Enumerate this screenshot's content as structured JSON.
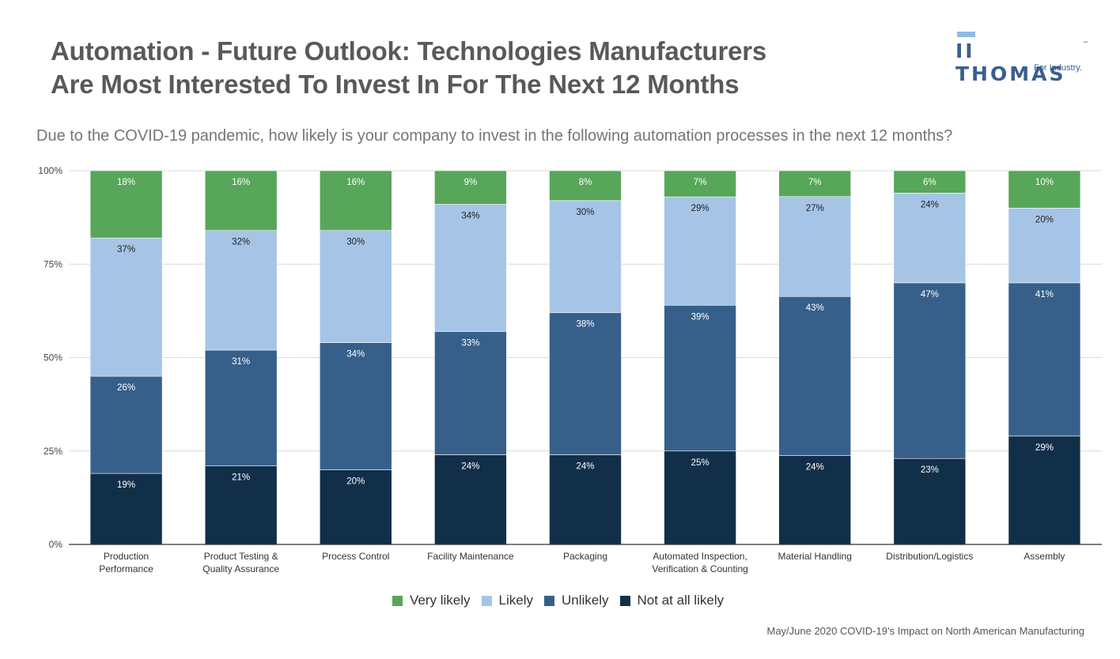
{
  "header": {
    "title_line1": "Automation - Future Outlook: Technologies Manufacturers",
    "title_line2": "Are Most Interested To Invest In For The Next 12 Months",
    "subtitle": "Due to the COVID-19 pandemic, how likely is your company to invest in the following automation processes in the next 12 months?"
  },
  "logo": {
    "name": "THOMAS",
    "tm": "™",
    "tagline": "For Industry."
  },
  "source": "May/June 2020 COVID-19’s Impact on North American Manufacturing",
  "chart_data": {
    "type": "bar",
    "stacked": true,
    "title": "",
    "xlabel": "",
    "ylabel": "",
    "ylim": [
      0,
      100
    ],
    "yticks": [
      "0%",
      "25%",
      "50%",
      "75%",
      "100%"
    ],
    "grid": true,
    "legend_position": "bottom",
    "categories": [
      [
        "Production",
        "Performance"
      ],
      [
        "Product Testing &",
        "Quality Assurance"
      ],
      [
        "Process Control"
      ],
      [
        "Facility Maintenance"
      ],
      [
        "Packaging"
      ],
      [
        "Automated Inspection,",
        "Verification & Counting"
      ],
      [
        "Material Handling"
      ],
      [
        "Distribution/Logistics"
      ],
      [
        "Assembly"
      ]
    ],
    "series": [
      {
        "name": "Not at all likely",
        "color": "#122f4a",
        "label_color": "#ffffff",
        "values": [
          19,
          21,
          20,
          24,
          24,
          25,
          24,
          23,
          29
        ]
      },
      {
        "name": "Unlikely",
        "color": "#36608a",
        "label_color": "#ffffff",
        "values": [
          26,
          31,
          34,
          33,
          38,
          39,
          43,
          47,
          41
        ]
      },
      {
        "name": "Likely",
        "color": "#a6c4e6",
        "label_color": "#222222",
        "values": [
          37,
          32,
          30,
          34,
          30,
          29,
          27,
          24,
          20
        ]
      },
      {
        "name": "Very likely",
        "color": "#57a65a",
        "label_color": "#ffffff",
        "values": [
          18,
          16,
          16,
          9,
          8,
          7,
          7,
          6,
          10
        ]
      }
    ],
    "legend_order": [
      "Very likely",
      "Likely",
      "Unlikely",
      "Not at all likely"
    ]
  }
}
